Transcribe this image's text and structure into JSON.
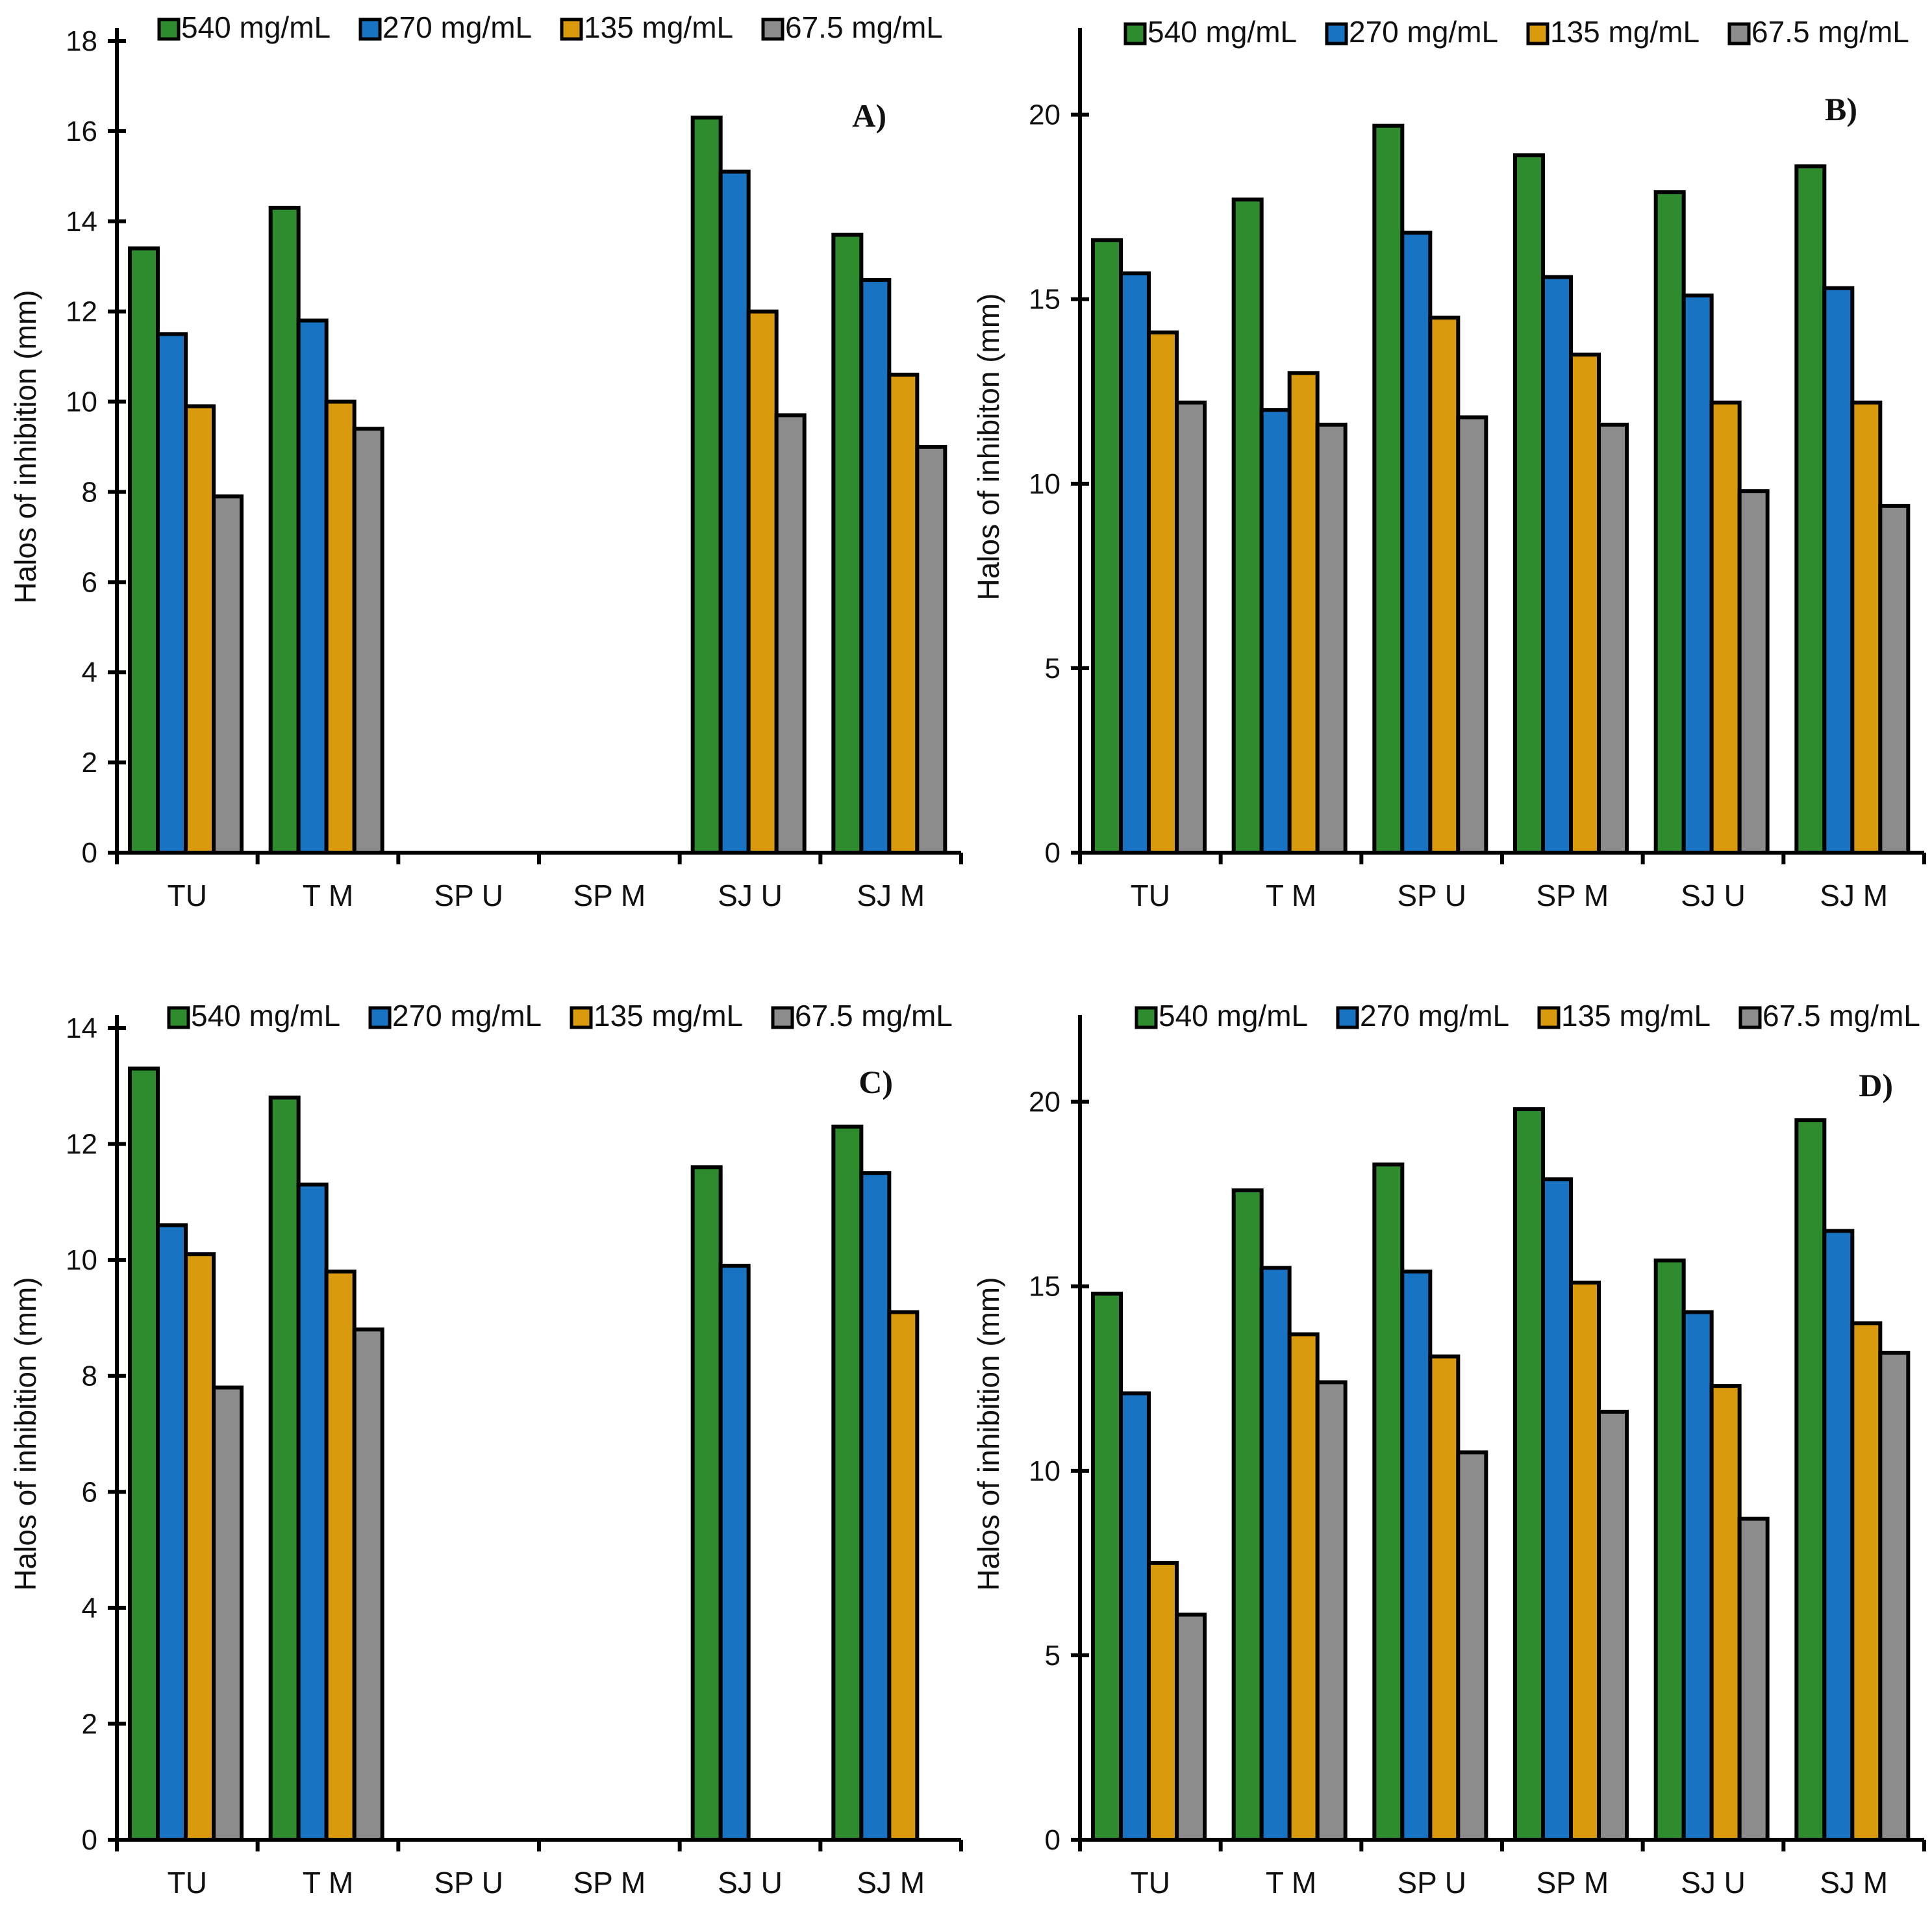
{
  "series_colors": {
    "540 mg/mL": "#2e8b2e",
    "270 mg/mL": "#1874c2",
    "135 mg/mL": "#d99a0e",
    "67.5 mg/mL": "#8c8c8c"
  },
  "chart_data": [
    {
      "panel": "A)",
      "type": "bar",
      "ylabel": "Halos of inhibition (mm)",
      "ylim": [
        0,
        18
      ],
      "yticks": [
        0,
        2,
        4,
        6,
        8,
        10,
        12,
        14,
        16,
        18
      ],
      "categories": [
        "TU",
        "T M",
        "SP U",
        "SP M",
        "SJ U",
        "SJ M"
      ],
      "legend": [
        "540 mg/mL",
        "270 mg/mL",
        "135 mg/mL",
        "67.5 mg/mL"
      ],
      "series": [
        {
          "name": "540 mg/mL",
          "values": [
            13.4,
            14.3,
            0,
            0,
            16.3,
            13.7
          ]
        },
        {
          "name": "270 mg/mL",
          "values": [
            11.5,
            11.8,
            0,
            0,
            15.1,
            12.7
          ]
        },
        {
          "name": "135 mg/mL",
          "values": [
            9.9,
            10.0,
            0,
            0,
            12.0,
            10.6
          ]
        },
        {
          "name": "67.5 mg/mL",
          "values": [
            7.9,
            9.4,
            0,
            0,
            9.7,
            9.0
          ]
        }
      ]
    },
    {
      "panel": "B)",
      "type": "bar",
      "ylabel": "Halos of inhibiton (mm)",
      "ylim": [
        0,
        22
      ],
      "yticks": [
        0,
        5,
        10,
        15,
        20
      ],
      "categories": [
        "TU",
        "T M",
        "SP U",
        "SP M",
        "SJ U",
        "SJ M"
      ],
      "legend": [
        "540 mg/mL",
        "270 mg/mL",
        "135 mg/mL",
        "67.5 mg/mL"
      ],
      "series": [
        {
          "name": "540 mg/mL",
          "values": [
            16.6,
            17.7,
            19.7,
            18.9,
            17.9,
            18.6
          ]
        },
        {
          "name": "270 mg/mL",
          "values": [
            15.7,
            12.0,
            16.8,
            15.6,
            15.1,
            15.3
          ]
        },
        {
          "name": "135 mg/mL",
          "values": [
            14.1,
            13.0,
            14.5,
            13.5,
            12.2,
            12.2
          ]
        },
        {
          "name": "67.5 mg/mL",
          "values": [
            12.2,
            11.6,
            11.8,
            11.6,
            9.8,
            9.4
          ]
        }
      ]
    },
    {
      "panel": "C)",
      "type": "bar",
      "ylabel": "Halos of inhibition (mm)",
      "ylim": [
        0,
        14
      ],
      "yticks": [
        0,
        2,
        4,
        6,
        8,
        10,
        12,
        14
      ],
      "categories": [
        "TU",
        "T M",
        "SP U",
        "SP M",
        "SJ U",
        "SJ M"
      ],
      "legend": [
        "540 mg/mL",
        "270 mg/mL",
        "135 mg/mL",
        "67.5 mg/mL"
      ],
      "series": [
        {
          "name": "540 mg/mL",
          "values": [
            13.3,
            12.8,
            0,
            0,
            11.6,
            12.3
          ]
        },
        {
          "name": "270 mg/mL",
          "values": [
            10.6,
            11.3,
            0,
            0,
            9.9,
            11.5
          ]
        },
        {
          "name": "135 mg/mL",
          "values": [
            10.1,
            9.8,
            0,
            0,
            0,
            9.1
          ]
        },
        {
          "name": "67.5 mg/mL",
          "values": [
            7.8,
            8.8,
            0,
            0,
            0,
            0
          ]
        }
      ]
    },
    {
      "panel": "D)",
      "type": "bar",
      "ylabel": "Halos of inhibition (mm)",
      "ylim": [
        0,
        22
      ],
      "yticks": [
        0,
        5,
        10,
        15,
        20
      ],
      "categories": [
        "TU",
        "T M",
        "SP U",
        "SP M",
        "SJ U",
        "SJ M"
      ],
      "legend": [
        "540 mg/mL",
        "270 mg/mL",
        "135 mg/mL",
        "67.5 mg/mL"
      ],
      "series": [
        {
          "name": "540 mg/mL",
          "values": [
            14.8,
            17.6,
            18.3,
            19.8,
            15.7,
            19.5
          ]
        },
        {
          "name": "270 mg/mL",
          "values": [
            12.1,
            15.5,
            15.4,
            17.9,
            14.3,
            16.5
          ]
        },
        {
          "name": "135 mg/mL",
          "values": [
            7.5,
            13.7,
            13.1,
            15.1,
            12.3,
            14.0
          ]
        },
        {
          "name": "67.5 mg/mL",
          "values": [
            6.1,
            12.4,
            10.5,
            11.6,
            8.7,
            13.2
          ]
        }
      ]
    }
  ]
}
